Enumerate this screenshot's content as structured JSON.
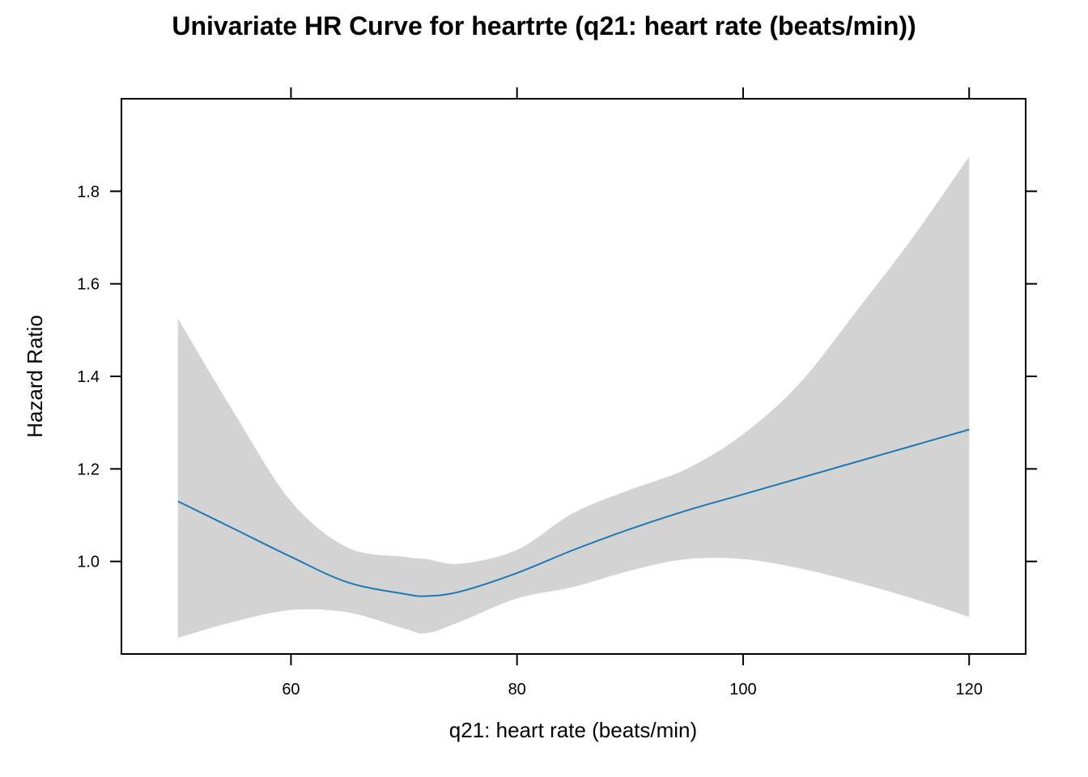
{
  "chart_data": {
    "type": "line",
    "title": "Univariate HR Curve for heartrte (q21: heart rate (beats/min))",
    "xlabel": "q21: heart rate (beats/min)",
    "ylabel": "Hazard Ratio",
    "xlim": [
      45,
      125
    ],
    "ylim": [
      0.8,
      2.0
    ],
    "x_ticks": [
      60,
      80,
      100,
      120
    ],
    "y_ticks": [
      1.0,
      1.2,
      1.4,
      1.6,
      1.8
    ],
    "x_tick_labels": [
      "60",
      "80",
      "100",
      "120"
    ],
    "y_tick_labels": [
      "1.0",
      "1.2",
      "1.4",
      "1.6",
      "1.8"
    ],
    "grid": false,
    "colors": {
      "line": "#1f77b4",
      "band": "#d3d3d3"
    },
    "series": [
      {
        "x": [
          50,
          55,
          60,
          65,
          70,
          72,
          75,
          80,
          85,
          90,
          95,
          100,
          105,
          110,
          115,
          120
        ],
        "hr": [
          1.13,
          1.07,
          1.01,
          0.955,
          0.93,
          0.925,
          0.935,
          0.975,
          1.025,
          1.07,
          1.11,
          1.145,
          1.18,
          1.215,
          1.25,
          1.285
        ],
        "lower": [
          0.835,
          0.87,
          0.895,
          0.89,
          0.855,
          0.845,
          0.87,
          0.92,
          0.945,
          0.98,
          1.005,
          1.005,
          0.985,
          0.955,
          0.92,
          0.88
        ],
        "upper": [
          1.525,
          1.32,
          1.13,
          1.03,
          1.01,
          1.005,
          0.995,
          1.025,
          1.105,
          1.155,
          1.2,
          1.275,
          1.385,
          1.54,
          1.7,
          1.875
        ]
      }
    ]
  }
}
